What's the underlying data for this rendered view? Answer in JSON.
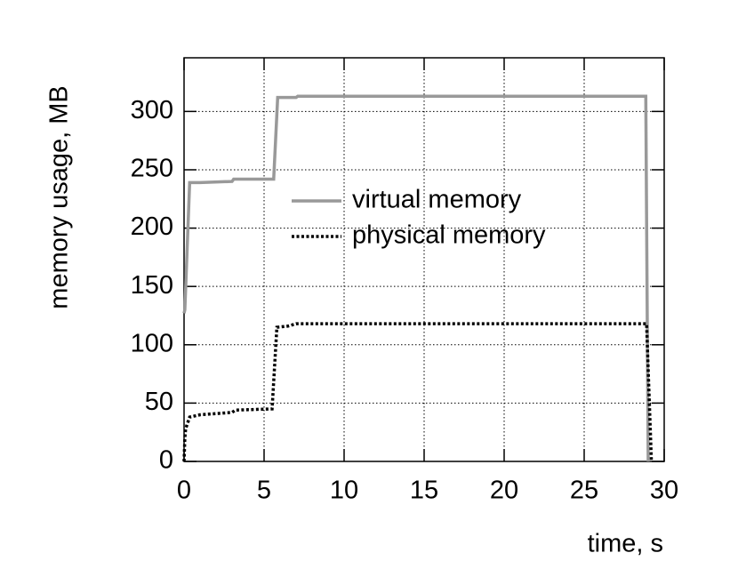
{
  "chart_data": {
    "type": "line",
    "x_label": "time, s",
    "y_label": "memory usage, MB",
    "xlim": [
      0,
      30
    ],
    "ylim": [
      0,
      346
    ],
    "xticks": [
      0,
      5,
      10,
      15,
      20,
      25,
      30
    ],
    "yticks": [
      0,
      50,
      100,
      150,
      200,
      250,
      300
    ],
    "grid": true,
    "legend_position": "upper center",
    "series": [
      {
        "name": "virtual memory",
        "color": "#999999",
        "dash": "solid",
        "x": [
          0,
          0.05,
          0.35,
          1.0,
          3.0,
          3.1,
          5.6,
          5.85,
          7.0,
          7.1,
          28.85,
          29.0
        ],
        "values": [
          127,
          130,
          239,
          239,
          240,
          242,
          242,
          312,
          312,
          313,
          313,
          0
        ]
      },
      {
        "name": "physical memory",
        "color": "#000000",
        "dash": "dotted",
        "x": [
          0,
          0.05,
          0.1,
          0.35,
          1.0,
          3.0,
          3.2,
          5.5,
          5.8,
          6.5,
          7.0,
          28.9,
          29.2
        ],
        "values": [
          0,
          20,
          28,
          38,
          40,
          42,
          44,
          45,
          115,
          116,
          118,
          118,
          0
        ]
      }
    ]
  }
}
